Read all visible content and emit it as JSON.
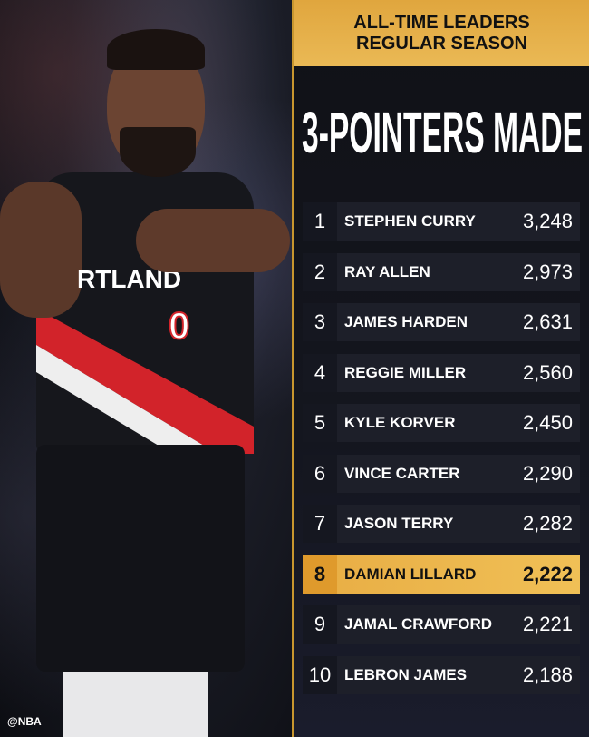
{
  "header": {
    "line1": "ALL-TIME LEADERS",
    "line2": "REGULAR SEASON"
  },
  "title": "3-POINTERS MADE",
  "photo": {
    "jersey_text": "RTLAND",
    "jersey_number": "0",
    "watermark": "@NBA"
  },
  "colors": {
    "gold": "#e8ad44",
    "panel": "#1d1f29",
    "highlight_text": "#111111"
  },
  "leaders": [
    {
      "rank": "1",
      "name": "STEPHEN CURRY",
      "value": "3,248"
    },
    {
      "rank": "2",
      "name": "RAY ALLEN",
      "value": "2,973"
    },
    {
      "rank": "3",
      "name": "JAMES HARDEN",
      "value": "2,631"
    },
    {
      "rank": "4",
      "name": "REGGIE MILLER",
      "value": "2,560"
    },
    {
      "rank": "5",
      "name": "KYLE KORVER",
      "value": "2,450"
    },
    {
      "rank": "6",
      "name": "VINCE CARTER",
      "value": "2,290"
    },
    {
      "rank": "7",
      "name": "JASON TERRY",
      "value": "2,282"
    },
    {
      "rank": "8",
      "name": "DAMIAN LILLARD",
      "value": "2,222",
      "highlighted": true
    },
    {
      "rank": "9",
      "name": "JAMAL CRAWFORD",
      "value": "2,221"
    },
    {
      "rank": "10",
      "name": "LEBRON JAMES",
      "value": "2,188"
    }
  ]
}
